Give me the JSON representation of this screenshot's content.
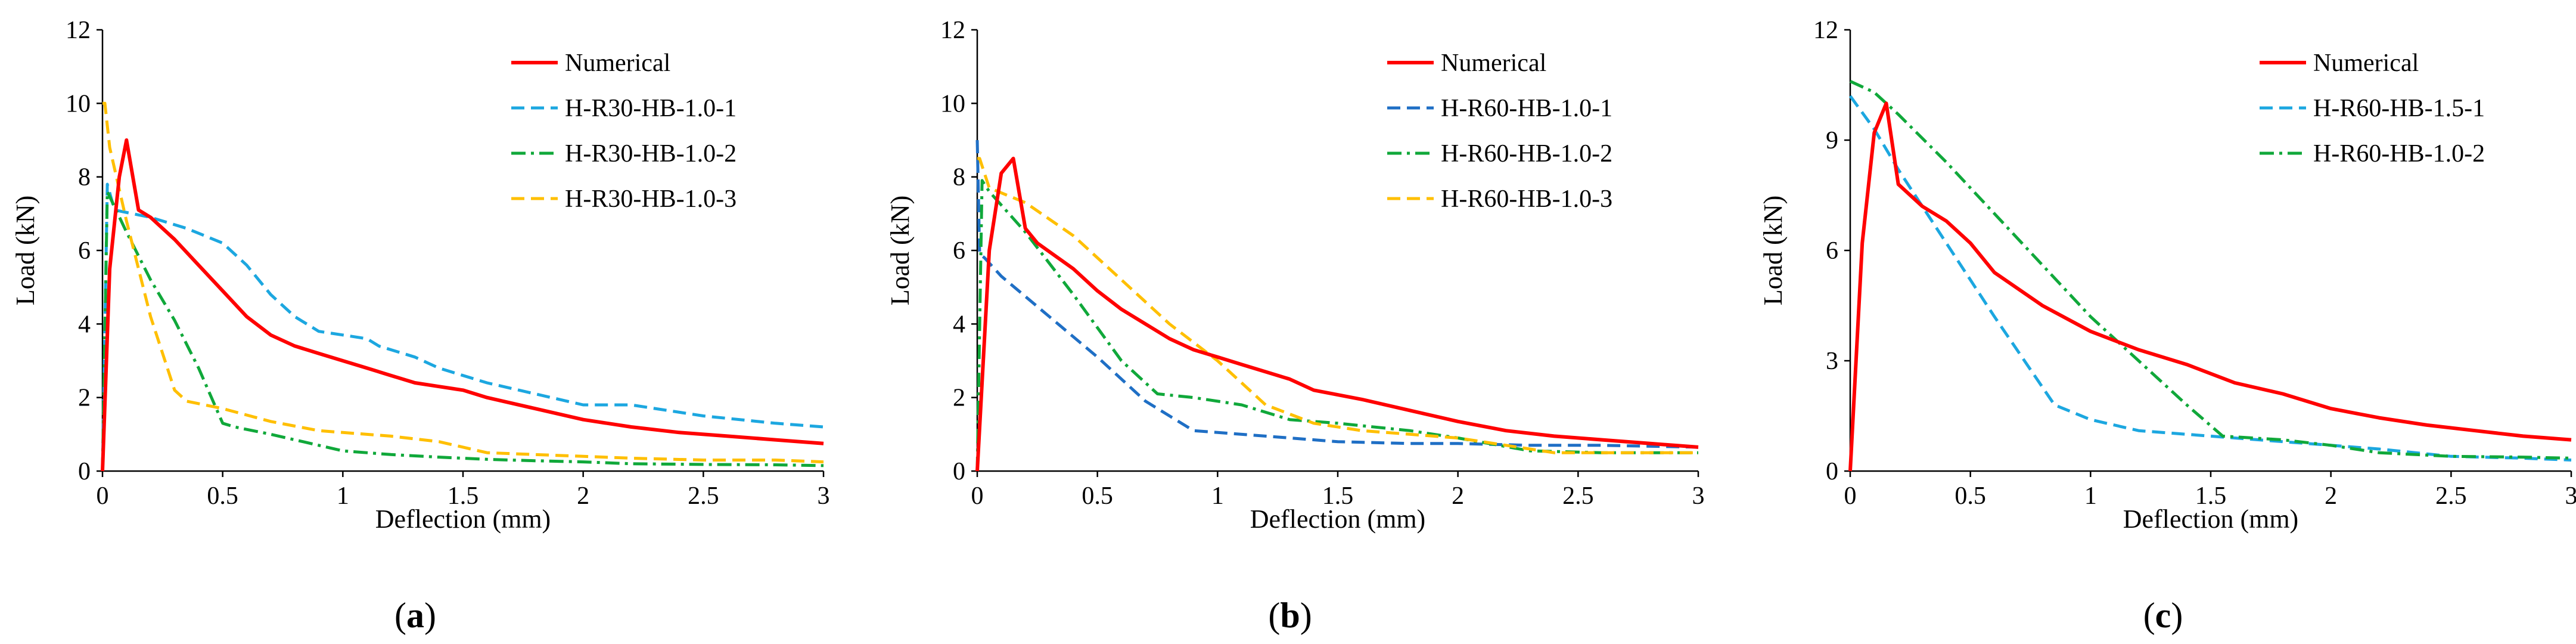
{
  "chart_data": [
    {
      "panel": "(a)",
      "panel_letter": "a",
      "type": "line",
      "xlabel": "Deflection (mm)",
      "ylabel": "Load (kN)",
      "xlim": [
        0,
        3
      ],
      "ylim": [
        0,
        12
      ],
      "xticks": [
        0,
        0.5,
        1,
        1.5,
        2,
        2.5,
        3
      ],
      "xtick_labels": [
        "0",
        "0.5",
        "1",
        "1.5",
        "2",
        "2.5",
        "3"
      ],
      "yticks": [
        0,
        2,
        4,
        6,
        8,
        10,
        12
      ],
      "ytick_labels": [
        "0",
        "2",
        "4",
        "6",
        "8",
        "10",
        "12"
      ],
      "legend_position": "top-right",
      "series": [
        {
          "name": "Numerical",
          "color": "#ff0000",
          "style": "solid",
          "x": [
            0,
            0.03,
            0.07,
            0.1,
            0.15,
            0.2,
            0.3,
            0.4,
            0.5,
            0.6,
            0.7,
            0.8,
            0.9,
            1.0,
            1.1,
            1.2,
            1.3,
            1.4,
            1.5,
            1.6,
            1.8,
            2.0,
            2.2,
            2.4,
            2.6,
            2.8,
            3.0
          ],
          "y": [
            0,
            5.5,
            8.0,
            9.0,
            7.1,
            6.9,
            6.3,
            5.6,
            4.9,
            4.2,
            3.7,
            3.4,
            3.2,
            3.0,
            2.8,
            2.6,
            2.4,
            2.3,
            2.2,
            2.0,
            1.7,
            1.4,
            1.2,
            1.05,
            0.95,
            0.85,
            0.75
          ]
        },
        {
          "name": "H-R30-HB-1.0-1",
          "color": "#1ca7e0",
          "style": "dash",
          "x": [
            0,
            0.02,
            0.05,
            0.2,
            0.35,
            0.5,
            0.6,
            0.7,
            0.8,
            0.9,
            1.0,
            1.1,
            1.15,
            1.2,
            1.3,
            1.4,
            1.5,
            1.6,
            1.8,
            2.0,
            2.1,
            2.2,
            2.5,
            2.8,
            3.0
          ],
          "y": [
            0,
            7.8,
            7.1,
            6.9,
            6.6,
            6.2,
            5.6,
            4.8,
            4.2,
            3.8,
            3.7,
            3.6,
            3.4,
            3.3,
            3.1,
            2.8,
            2.6,
            2.4,
            2.1,
            1.8,
            1.8,
            1.8,
            1.5,
            1.3,
            1.2
          ]
        },
        {
          "name": "H-R30-HB-1.0-2",
          "color": "#10a83a",
          "style": "dashdot",
          "x": [
            0,
            0.02,
            0.1,
            0.2,
            0.3,
            0.4,
            0.5,
            0.55,
            0.7,
            0.9,
            1.0,
            1.2,
            1.4,
            1.6,
            1.8,
            2.0,
            2.2,
            2.5,
            2.8,
            3.0
          ],
          "y": [
            0,
            7.6,
            6.5,
            5.2,
            4.1,
            2.8,
            1.3,
            1.2,
            1.0,
            0.7,
            0.55,
            0.45,
            0.38,
            0.32,
            0.28,
            0.25,
            0.2,
            0.18,
            0.17,
            0.15
          ]
        },
        {
          "name": "H-R30-HB-1.0-3",
          "color": "#ffbf00",
          "style": "dash",
          "x": [
            0,
            0.01,
            0.03,
            0.1,
            0.2,
            0.3,
            0.35,
            0.5,
            0.7,
            0.9,
            1.0,
            1.2,
            1.4,
            1.6,
            1.8,
            2.0,
            2.2,
            2.5,
            2.8,
            3.0
          ],
          "y": [
            10.0,
            10.0,
            8.8,
            6.8,
            4.2,
            2.2,
            1.9,
            1.7,
            1.35,
            1.1,
            1.05,
            0.95,
            0.8,
            0.5,
            0.45,
            0.4,
            0.35,
            0.3,
            0.3,
            0.25
          ]
        }
      ]
    },
    {
      "panel": "(b)",
      "panel_letter": "b",
      "type": "line",
      "xlabel": "Deflection (mm)",
      "ylabel": "Load (kN)",
      "xlim": [
        0,
        3
      ],
      "ylim": [
        0,
        12
      ],
      "xticks": [
        0,
        0.5,
        1,
        1.5,
        2,
        2.5,
        3
      ],
      "xtick_labels": [
        "0",
        "0.5",
        "1",
        "1.5",
        "2",
        "2.5",
        "3"
      ],
      "yticks": [
        0,
        2,
        4,
        6,
        8,
        10,
        12
      ],
      "ytick_labels": [
        "0",
        "2",
        "4",
        "6",
        "8",
        "10",
        "12"
      ],
      "legend_position": "top-right",
      "series": [
        {
          "name": "Numerical",
          "color": "#ff0000",
          "style": "solid",
          "x": [
            0,
            0.05,
            0.1,
            0.15,
            0.2,
            0.25,
            0.4,
            0.5,
            0.6,
            0.7,
            0.8,
            0.9,
            1.0,
            1.1,
            1.2,
            1.3,
            1.4,
            1.6,
            1.8,
            2.0,
            2.2,
            2.4,
            2.6,
            2.8,
            3.0
          ],
          "y": [
            0,
            6.0,
            8.1,
            8.5,
            6.6,
            6.2,
            5.5,
            4.9,
            4.4,
            4.0,
            3.6,
            3.3,
            3.1,
            2.9,
            2.7,
            2.5,
            2.2,
            1.95,
            1.65,
            1.35,
            1.1,
            0.95,
            0.85,
            0.75,
            0.65
          ]
        },
        {
          "name": "H-R60-HB-1.0-1",
          "color": "#1f6fc5",
          "style": "dash",
          "x": [
            0,
            0.01,
            0.03,
            0.1,
            0.3,
            0.5,
            0.7,
            0.9,
            1.0,
            1.2,
            1.5,
            1.8,
            2.0,
            2.3,
            2.6,
            3.0
          ],
          "y": [
            9.0,
            5.9,
            5.8,
            5.3,
            4.2,
            3.1,
            1.9,
            1.1,
            1.05,
            0.95,
            0.8,
            0.75,
            0.75,
            0.7,
            0.7,
            0.65
          ]
        },
        {
          "name": "H-R60-HB-1.0-2",
          "color": "#10a83a",
          "style": "dashdot",
          "x": [
            0,
            0.02,
            0.05,
            0.2,
            0.4,
            0.6,
            0.75,
            0.9,
            1.1,
            1.3,
            1.5,
            1.8,
            2.0,
            2.3,
            2.6,
            3.0
          ],
          "y": [
            0,
            7.9,
            7.6,
            6.5,
            4.8,
            3.0,
            2.1,
            2.0,
            1.8,
            1.4,
            1.3,
            1.1,
            0.9,
            0.55,
            0.5,
            0.5
          ]
        },
        {
          "name": "H-R60-HB-1.0-3",
          "color": "#ffbf00",
          "style": "dash",
          "x": [
            0,
            0.01,
            0.05,
            0.2,
            0.4,
            0.6,
            0.8,
            1.0,
            1.2,
            1.4,
            1.6,
            1.8,
            2.0,
            2.2,
            2.4,
            2.6,
            3.0
          ],
          "y": [
            8.5,
            8.5,
            7.7,
            7.3,
            6.4,
            5.2,
            4.0,
            3.0,
            1.8,
            1.3,
            1.1,
            1.0,
            0.9,
            0.7,
            0.5,
            0.5,
            0.5
          ]
        }
      ]
    },
    {
      "panel": "(c)",
      "panel_letter": "c",
      "type": "line",
      "xlabel": "Deflection (mm)",
      "ylabel": "Load (kN)",
      "xlim": [
        0,
        3
      ],
      "ylim": [
        0,
        12
      ],
      "xticks": [
        0,
        0.5,
        1,
        1.5,
        2,
        2.5,
        3
      ],
      "xtick_labels": [
        "0",
        "0.5",
        "1",
        "1.5",
        "2",
        "2.5",
        "3"
      ],
      "yticks": [
        0,
        3,
        6,
        9,
        12
      ],
      "ytick_labels": [
        "0",
        "3",
        "6",
        "9",
        "12"
      ],
      "legend_position": "top-right",
      "series": [
        {
          "name": "Numerical",
          "color": "#ff0000",
          "style": "solid",
          "x": [
            0,
            0.05,
            0.1,
            0.15,
            0.2,
            0.3,
            0.4,
            0.5,
            0.6,
            0.8,
            1.0,
            1.2,
            1.4,
            1.6,
            1.8,
            2.0,
            2.2,
            2.4,
            2.6,
            2.8,
            3.0
          ],
          "y": [
            0,
            6.2,
            9.2,
            10.0,
            7.8,
            7.2,
            6.8,
            6.2,
            5.4,
            4.5,
            3.8,
            3.3,
            2.9,
            2.4,
            2.1,
            1.7,
            1.45,
            1.25,
            1.1,
            0.95,
            0.85
          ]
        },
        {
          "name": "H-R60-HB-1.5-1",
          "color": "#1ca7e0",
          "style": "dash",
          "x": [
            0,
            0.1,
            0.2,
            0.4,
            0.6,
            0.85,
            1.0,
            1.2,
            1.5,
            1.8,
            2.0,
            2.2,
            2.5,
            2.8,
            3.0
          ],
          "y": [
            10.2,
            9.3,
            8.2,
            6.2,
            4.2,
            1.8,
            1.4,
            1.1,
            0.95,
            0.8,
            0.7,
            0.6,
            0.4,
            0.35,
            0.3
          ]
        },
        {
          "name": "H-R60-HB-1.0-2",
          "color": "#10a83a",
          "style": "dashdot",
          "x": [
            0,
            0.1,
            0.2,
            0.4,
            0.6,
            0.8,
            1.0,
            1.2,
            1.4,
            1.55,
            1.8,
            2.0,
            2.2,
            2.5,
            2.8,
            3.0
          ],
          "y": [
            10.6,
            10.3,
            9.7,
            8.4,
            7.0,
            5.6,
            4.2,
            3.0,
            1.8,
            0.95,
            0.85,
            0.7,
            0.5,
            0.4,
            0.38,
            0.35
          ]
        }
      ]
    }
  ]
}
